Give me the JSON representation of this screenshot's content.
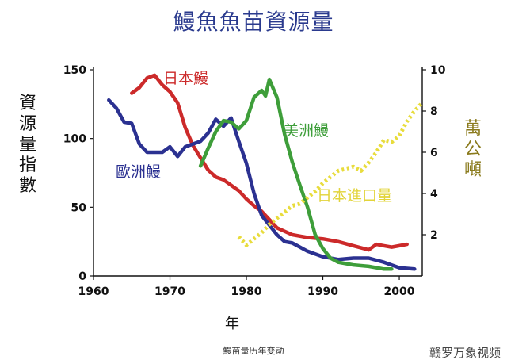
{
  "chart_data": {
    "type": "line",
    "title": "鰻魚魚苗資源量",
    "xlabel": "年",
    "ylabel_left": "資源量指數",
    "ylabel_right": "萬公噸",
    "xlim": [
      1960,
      2003
    ],
    "ylim_left": [
      0,
      150
    ],
    "ylim_right": [
      0,
      10
    ],
    "x_ticks": [
      "1960",
      "1970",
      "1980",
      "1990",
      "2000"
    ],
    "y_left_ticks": [
      "0",
      "50",
      "100",
      "150"
    ],
    "y_right_ticks": [
      "2",
      "4",
      "6",
      "8",
      "10"
    ],
    "grid": false,
    "series": [
      {
        "name": "日本鰻",
        "axis": "left",
        "color": "#cc2a2a",
        "x": [
          1965,
          1966,
          1967,
          1968,
          1969,
          1970,
          1971,
          1972,
          1973,
          1974,
          1975,
          1976,
          1977,
          1978,
          1979,
          1980,
          1981,
          1982,
          1983,
          1984,
          1986,
          1988,
          1990,
          1992,
          1994,
          1996,
          1997,
          1998,
          1999,
          2000,
          2001
        ],
        "y": [
          133,
          137,
          144,
          146,
          139,
          134,
          126,
          108,
          95,
          86,
          77,
          72,
          70,
          66,
          62,
          56,
          51,
          47,
          41,
          35,
          30,
          28,
          27,
          25,
          22,
          19,
          23,
          22,
          21,
          22,
          23
        ]
      },
      {
        "name": "歐洲鰻",
        "axis": "left",
        "color": "#2b3191",
        "x": [
          1962,
          1963,
          1964,
          1965,
          1966,
          1967,
          1968,
          1969,
          1970,
          1971,
          1972,
          1973,
          1974,
          1975,
          1976,
          1977,
          1978,
          1979,
          1980,
          1981,
          1982,
          1983,
          1984,
          1985,
          1986,
          1988,
          1990,
          1992,
          1994,
          1996,
          1998,
          2000,
          2002
        ],
        "y": [
          128,
          122,
          112,
          111,
          96,
          90,
          90,
          90,
          94,
          87,
          94,
          96,
          98,
          104,
          114,
          109,
          115,
          98,
          82,
          60,
          44,
          37,
          30,
          25,
          24,
          18,
          14,
          12,
          13,
          13,
          10,
          6,
          5
        ]
      },
      {
        "name": "美洲鰻",
        "axis": "left",
        "color": "#3e9e3a",
        "x": [
          1974,
          1975,
          1976,
          1977,
          1978,
          1979,
          1980,
          1981,
          1982,
          1982.5,
          1983,
          1984,
          1985,
          1986,
          1987,
          1988,
          1989,
          1990,
          1991,
          1992,
          1994,
          1996,
          1998,
          1999
        ],
        "y": [
          80,
          93,
          105,
          113,
          112,
          107,
          113,
          130,
          135,
          131,
          143,
          130,
          103,
          83,
          66,
          50,
          30,
          20,
          13,
          10,
          8,
          7,
          5,
          5
        ]
      },
      {
        "name": "日本進口量",
        "axis": "right",
        "color": "#e8dc3c",
        "x": [
          1979,
          1980,
          1981,
          1982,
          1983,
          1984,
          1985,
          1986,
          1987,
          1988,
          1989,
          1990,
          1991,
          1992,
          1993,
          1994,
          1995,
          1996,
          1997,
          1998,
          1999,
          2000,
          2001,
          2002,
          2003
        ],
        "y": [
          1.9,
          1.5,
          1.8,
          2.1,
          2.5,
          2.8,
          3.1,
          3.4,
          3.5,
          3.8,
          4.1,
          4.5,
          4.8,
          5.1,
          5.2,
          5.3,
          5.1,
          5.5,
          6.0,
          6.6,
          6.5,
          6.8,
          7.5,
          8.0,
          8.4
        ]
      }
    ]
  },
  "caption": "鰻苗量历年变动",
  "watermark": "赣罗万象视频"
}
